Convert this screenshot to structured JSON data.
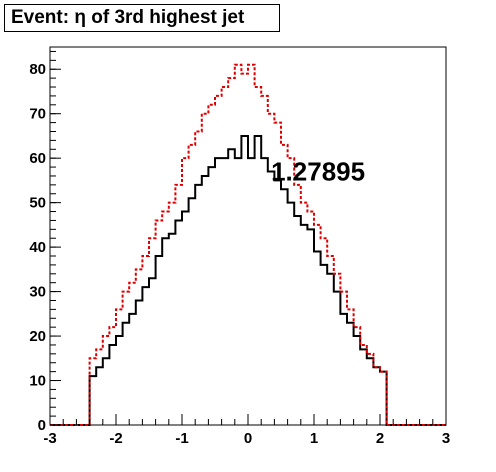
{
  "chart_data": {
    "type": "histogram",
    "title": "Event: η of 3rd highest jet",
    "annotation": "1.27895",
    "xlim": [
      -3,
      3
    ],
    "ylim": [
      0,
      85
    ],
    "x_ticks": [
      "-3",
      "-2",
      "-1",
      "0",
      "1",
      "2",
      "3"
    ],
    "y_ticks": [
      "0",
      "10",
      "20",
      "30",
      "40",
      "50",
      "60",
      "70",
      "80"
    ],
    "bin_edges_range": [
      -3,
      3
    ],
    "bin_count": 60,
    "series": [
      {
        "color": "#000000",
        "style": "solid",
        "values": [
          0,
          0,
          0,
          0,
          0,
          0,
          11,
          13,
          15,
          18,
          20,
          23,
          25,
          28,
          31,
          33,
          38,
          42,
          43,
          46,
          48,
          51,
          54,
          56,
          58,
          60,
          60,
          62,
          60,
          65,
          60,
          65,
          60,
          57,
          55,
          53,
          50,
          47,
          45,
          44,
          39,
          36,
          34,
          30,
          25,
          23,
          20,
          17,
          15,
          13,
          12,
          0,
          0,
          0,
          0,
          0,
          0,
          0,
          0,
          0
        ]
      },
      {
        "color": "#dd0000",
        "style": "dashed",
        "values": [
          0,
          0,
          0,
          0,
          0,
          0,
          15,
          17,
          20,
          22,
          26,
          30,
          32,
          35,
          38,
          42,
          46,
          48,
          50,
          54,
          60,
          63,
          66,
          70,
          72,
          74,
          76,
          78,
          81,
          79,
          81,
          76,
          74,
          70,
          68,
          63,
          60,
          54,
          50,
          48,
          45,
          42,
          38,
          34,
          30,
          26,
          22,
          18,
          16,
          13,
          12,
          0,
          0,
          0,
          0,
          0,
          0,
          0,
          0,
          0
        ]
      }
    ]
  }
}
